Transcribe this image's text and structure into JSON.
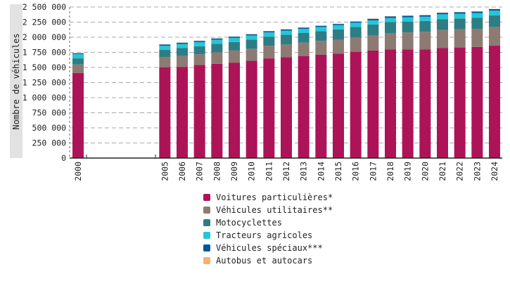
{
  "chart_data": {
    "type": "bar",
    "stacked": true,
    "ylabel": "Nombre de véhicules",
    "xlabel": "",
    "ylim": [
      0,
      2500000
    ],
    "yticks": [
      0,
      250000,
      500000,
      750000,
      1000000,
      1250000,
      1500000,
      1750000,
      2000000,
      2250000,
      2500000
    ],
    "ytick_labels": [
      "0",
      "250 000",
      "500 000",
      "750 000",
      "1 000 000",
      "1 250 000",
      "1 500 000",
      "1 750 000",
      "2 000 000",
      "2 250 000",
      "2 500 000"
    ],
    "grid": "horizontal-dashed",
    "legend_position": "bottom",
    "categories": [
      "2000",
      "2005",
      "2006",
      "2007",
      "2008",
      "2009",
      "2010",
      "2011",
      "2012",
      "2013",
      "2014",
      "2015",
      "2016",
      "2017",
      "2018",
      "2019",
      "2020",
      "2021",
      "2022",
      "2023",
      "2024"
    ],
    "series": [
      {
        "name": "Voitures particulières*",
        "color": "#ad1457",
        "values": [
          1410000,
          1500000,
          1510000,
          1540000,
          1560000,
          1580000,
          1610000,
          1650000,
          1670000,
          1690000,
          1710000,
          1730000,
          1760000,
          1780000,
          1800000,
          1800000,
          1800000,
          1820000,
          1830000,
          1840000,
          1860000
        ]
      },
      {
        "name": "Véhicules utilitaires**",
        "color": "#8d7b73",
        "values": [
          140000,
          170000,
          180000,
          180000,
          190000,
          200000,
          200000,
          210000,
          210000,
          220000,
          230000,
          230000,
          240000,
          250000,
          270000,
          280000,
          290000,
          300000,
          300000,
          300000,
          310000
        ]
      },
      {
        "name": "Motocyclettes",
        "color": "#2e7d85",
        "values": [
          100000,
          120000,
          130000,
          130000,
          140000,
          140000,
          150000,
          150000,
          160000,
          160000,
          160000,
          170000,
          170000,
          180000,
          180000,
          180000,
          180000,
          180000,
          180000,
          180000,
          190000
        ]
      },
      {
        "name": "Tracteurs agricoles",
        "color": "#26c6da",
        "values": [
          70000,
          70000,
          70000,
          70000,
          70000,
          70000,
          70000,
          70000,
          70000,
          70000,
          70000,
          70000,
          70000,
          70000,
          70000,
          70000,
          70000,
          80000,
          80000,
          80000,
          80000
        ]
      },
      {
        "name": "Véhicules spéciaux***",
        "color": "#01579b",
        "values": [
          15000,
          20000,
          20000,
          20000,
          20000,
          20000,
          20000,
          20000,
          20000,
          20000,
          20000,
          20000,
          20000,
          25000,
          25000,
          25000,
          25000,
          25000,
          25000,
          25000,
          25000
        ]
      },
      {
        "name": "Autobus et autocars",
        "color": "#f6b26b",
        "values": [
          4000,
          4000,
          4000,
          4000,
          4000,
          4000,
          4000,
          4000,
          4000,
          4000,
          4000,
          4000,
          4000,
          4000,
          4000,
          4000,
          4000,
          4000,
          4000,
          4000,
          4000
        ]
      }
    ]
  }
}
